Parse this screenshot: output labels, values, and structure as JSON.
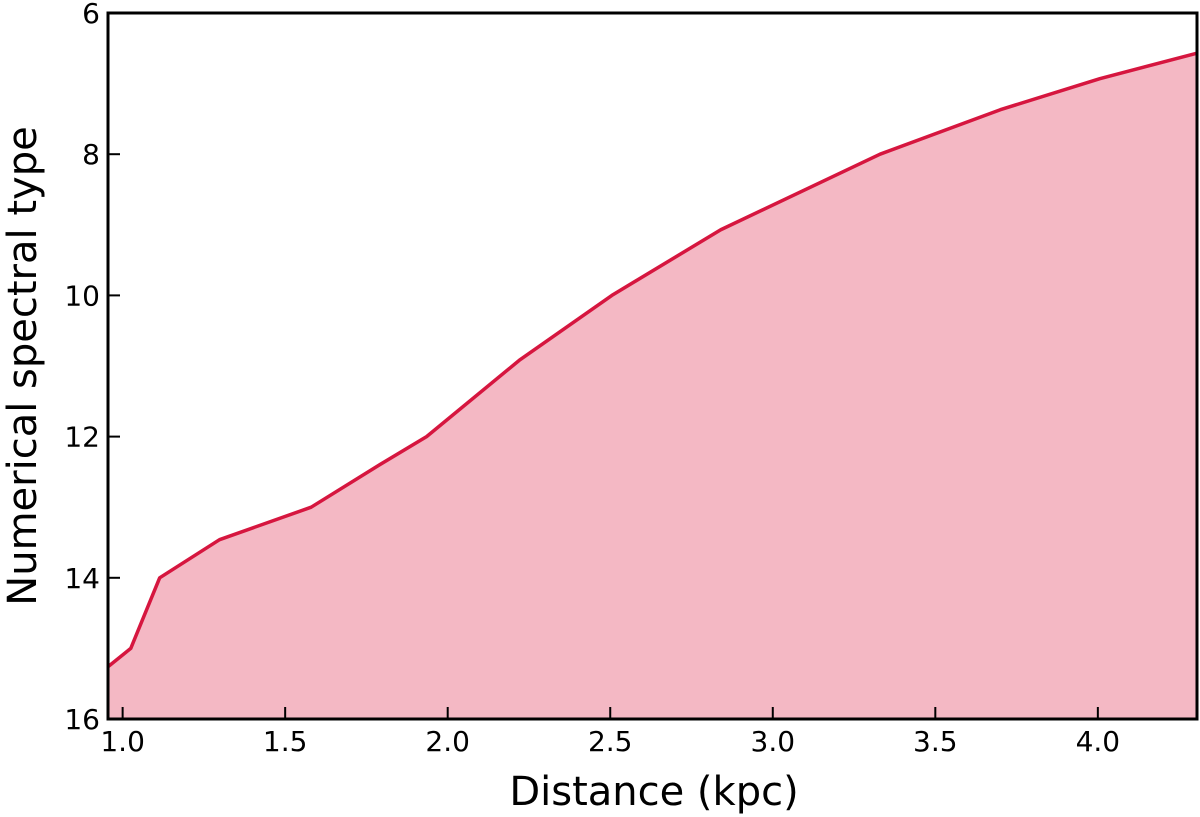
{
  "chart_data": {
    "type": "area",
    "x_label": "Distance (kpc)",
    "y_label": "Numerical spectral type",
    "x": [
      0.955,
      1.025,
      1.114,
      1.298,
      1.58,
      1.79,
      1.935,
      2.22,
      2.505,
      2.84,
      3.33,
      3.7,
      4.006,
      4.305
    ],
    "values": [
      15.26,
      15.0,
      14.0,
      13.46,
      13.0,
      12.4,
      12.0,
      10.92,
      10.0,
      9.07,
      8.0,
      7.37,
      6.93,
      6.57
    ],
    "color": "#d6163f",
    "fill_color": "#f4b8c4",
    "xlim": [
      0.955,
      4.305
    ],
    "ylim": [
      16,
      6
    ],
    "xticks": [
      {
        "value": 1.0,
        "label": "1.0"
      },
      1.5,
      {
        "value": 2.0,
        "label": "2.0"
      },
      2.5,
      {
        "value": 3.0,
        "label": "3.0"
      },
      3.5,
      {
        "value": 4.0,
        "label": "4.0"
      }
    ],
    "yticks": [
      6,
      8,
      10,
      12,
      14,
      16
    ],
    "grid": false
  }
}
